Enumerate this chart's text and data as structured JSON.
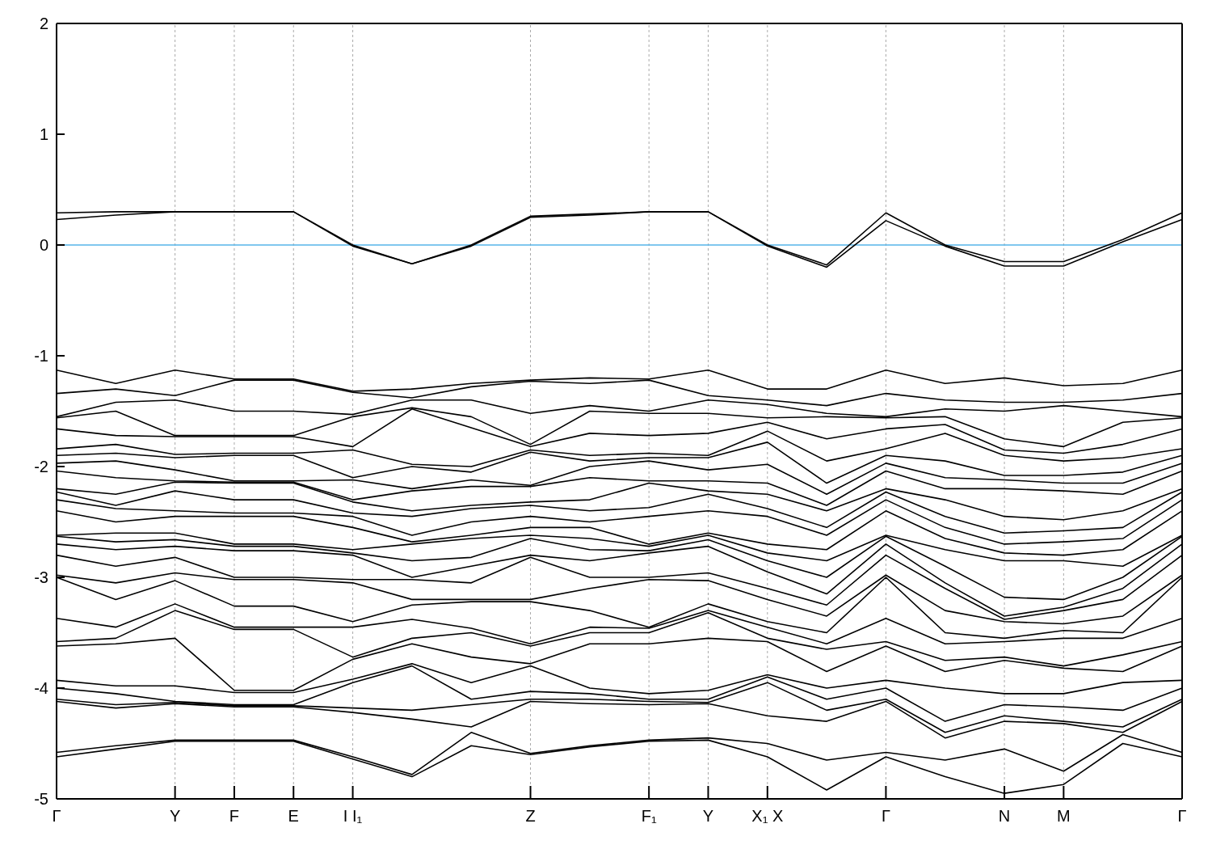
{
  "chart_data": {
    "type": "line",
    "ylim": [
      -5,
      2
    ],
    "categories": [
      "Γ",
      null,
      "Y",
      "F",
      "E",
      "I I₁",
      null,
      null,
      "Z",
      null,
      "F₁",
      "Y",
      "X₁ X",
      null,
      "Γ",
      null,
      "N",
      "M",
      null,
      "Γ"
    ],
    "yticks": [
      -5,
      -4,
      -3,
      -2,
      -1,
      0,
      1,
      2
    ],
    "grid": "x",
    "marker": "none",
    "line_style": "solid",
    "ref_lines": [
      {
        "axis": "y",
        "value": 0,
        "color": "#56b4e9"
      }
    ],
    "series": [
      {
        "color": "#000000",
        "values": [
          0.29,
          0.3,
          0.3,
          0.3,
          0.3,
          0.0,
          -0.17,
          0.0,
          0.26,
          0.28,
          0.3,
          0.3,
          0.0,
          -0.18,
          0.29,
          0.0,
          -0.15,
          -0.15,
          0.05,
          0.29
        ]
      },
      {
        "color": "#000000",
        "values": [
          0.23,
          0.27,
          0.3,
          0.3,
          0.3,
          -0.01,
          -0.17,
          -0.01,
          0.25,
          0.27,
          0.3,
          0.3,
          -0.01,
          -0.2,
          0.22,
          -0.01,
          -0.19,
          -0.19,
          0.03,
          0.23
        ]
      },
      {
        "color": "#000000",
        "values": [
          -1.13,
          -1.25,
          -1.13,
          -1.21,
          -1.21,
          -1.32,
          -1.3,
          -1.25,
          -1.22,
          -1.2,
          -1.21,
          -1.13,
          -1.3,
          -1.3,
          -1.13,
          -1.25,
          -1.2,
          -1.27,
          -1.25,
          -1.13
        ]
      },
      {
        "color": "#000000",
        "values": [
          -1.34,
          -1.3,
          -1.36,
          -1.22,
          -1.22,
          -1.33,
          -1.38,
          -1.28,
          -1.23,
          -1.25,
          -1.22,
          -1.36,
          -1.4,
          -1.45,
          -1.34,
          -1.4,
          -1.42,
          -1.42,
          -1.4,
          -1.34
        ]
      },
      {
        "color": "#000000",
        "values": [
          -1.55,
          -1.42,
          -1.4,
          -1.5,
          -1.5,
          -1.53,
          -1.4,
          -1.4,
          -1.52,
          -1.45,
          -1.5,
          -1.4,
          -1.44,
          -1.52,
          -1.55,
          -1.48,
          -1.5,
          -1.45,
          -1.5,
          -1.55
        ]
      },
      {
        "color": "#000000",
        "values": [
          -1.56,
          -1.5,
          -1.72,
          -1.72,
          -1.72,
          -1.55,
          -1.47,
          -1.55,
          -1.8,
          -1.5,
          -1.52,
          -1.52,
          -1.56,
          -1.55,
          -1.56,
          -1.55,
          -1.75,
          -1.82,
          -1.6,
          -1.56
        ]
      },
      {
        "color": "#000000",
        "values": [
          -1.66,
          -1.72,
          -1.73,
          -1.73,
          -1.73,
          -1.82,
          -1.48,
          -1.65,
          -1.82,
          -1.7,
          -1.72,
          -1.7,
          -1.6,
          -1.75,
          -1.66,
          -1.62,
          -1.85,
          -1.88,
          -1.8,
          -1.66
        ]
      },
      {
        "color": "#000000",
        "values": [
          -1.84,
          -1.8,
          -1.89,
          -1.88,
          -1.88,
          -1.85,
          -1.98,
          -2.0,
          -1.85,
          -1.9,
          -1.88,
          -1.9,
          -1.68,
          -1.95,
          -1.84,
          -1.7,
          -1.9,
          -1.95,
          -1.92,
          -1.84
        ]
      },
      {
        "color": "#000000",
        "values": [
          -1.9,
          -1.88,
          -1.92,
          -1.9,
          -1.9,
          -2.1,
          -2.0,
          -2.05,
          -1.87,
          -1.95,
          -1.92,
          -1.92,
          -1.78,
          -2.15,
          -1.9,
          -1.95,
          -2.08,
          -2.08,
          -2.05,
          -1.9
        ]
      },
      {
        "color": "#000000",
        "values": [
          -1.97,
          -1.95,
          -2.03,
          -2.13,
          -2.13,
          -2.12,
          -2.2,
          -2.12,
          -2.17,
          -2.0,
          -1.95,
          -2.03,
          -1.98,
          -2.25,
          -1.97,
          -2.1,
          -2.12,
          -2.15,
          -2.15,
          -1.97
        ]
      },
      {
        "color": "#000000",
        "values": [
          -2.04,
          -2.1,
          -2.13,
          -2.14,
          -2.14,
          -2.3,
          -2.22,
          -2.18,
          -2.18,
          -2.1,
          -2.13,
          -2.13,
          -2.15,
          -2.35,
          -2.04,
          -2.2,
          -2.2,
          -2.22,
          -2.25,
          -2.04
        ]
      },
      {
        "color": "#000000",
        "values": [
          -2.2,
          -2.25,
          -2.14,
          -2.15,
          -2.15,
          -2.32,
          -2.4,
          -2.35,
          -2.32,
          -2.3,
          -2.15,
          -2.22,
          -2.25,
          -2.4,
          -2.2,
          -2.3,
          -2.45,
          -2.48,
          -2.4,
          -2.2
        ]
      },
      {
        "color": "#000000",
        "values": [
          -2.23,
          -2.35,
          -2.22,
          -2.3,
          -2.3,
          -2.42,
          -2.45,
          -2.38,
          -2.35,
          -2.4,
          -2.37,
          -2.25,
          -2.38,
          -2.55,
          -2.23,
          -2.45,
          -2.6,
          -2.58,
          -2.55,
          -2.23
        ]
      },
      {
        "color": "#000000",
        "values": [
          -2.3,
          -2.38,
          -2.4,
          -2.42,
          -2.42,
          -2.45,
          -2.62,
          -2.5,
          -2.45,
          -2.5,
          -2.45,
          -2.4,
          -2.45,
          -2.62,
          -2.3,
          -2.55,
          -2.7,
          -2.68,
          -2.65,
          -2.3
        ]
      },
      {
        "color": "#000000",
        "values": [
          -2.4,
          -2.5,
          -2.45,
          -2.45,
          -2.45,
          -2.55,
          -2.68,
          -2.62,
          -2.55,
          -2.55,
          -2.7,
          -2.6,
          -2.7,
          -2.75,
          -2.4,
          -2.65,
          -2.78,
          -2.8,
          -2.75,
          -2.4
        ]
      },
      {
        "color": "#000000",
        "values": [
          -2.62,
          -2.6,
          -2.6,
          -2.7,
          -2.7,
          -2.75,
          -2.7,
          -2.65,
          -2.62,
          -2.65,
          -2.72,
          -2.62,
          -2.78,
          -2.85,
          -2.62,
          -2.75,
          -2.85,
          -2.85,
          -2.9,
          -2.62
        ]
      },
      {
        "color": "#000000",
        "values": [
          -2.63,
          -2.68,
          -2.66,
          -2.72,
          -2.72,
          -2.78,
          -2.85,
          -2.82,
          -2.65,
          -2.75,
          -2.76,
          -2.66,
          -2.85,
          -3.0,
          -2.63,
          -2.9,
          -3.18,
          -3.2,
          -3.0,
          -2.63
        ]
      },
      {
        "color": "#000000",
        "values": [
          -2.7,
          -2.75,
          -2.72,
          -2.76,
          -2.76,
          -2.8,
          -3.0,
          -2.9,
          -2.8,
          -2.85,
          -2.78,
          -2.72,
          -2.95,
          -3.15,
          -2.7,
          -3.05,
          -3.35,
          -3.27,
          -3.1,
          -2.7
        ]
      },
      {
        "color": "#000000",
        "values": [
          -2.8,
          -2.9,
          -2.82,
          -3.0,
          -3.0,
          -3.02,
          -3.02,
          -3.05,
          -2.82,
          -3.0,
          -3.0,
          -2.96,
          -3.1,
          -3.25,
          -2.8,
          -3.1,
          -3.38,
          -3.3,
          -3.2,
          -2.8
        ]
      },
      {
        "color": "#000000",
        "values": [
          -2.98,
          -3.05,
          -2.96,
          -3.02,
          -3.02,
          -3.05,
          -3.2,
          -3.2,
          -3.2,
          -3.1,
          -3.02,
          -3.03,
          -3.2,
          -3.35,
          -2.98,
          -3.3,
          -3.4,
          -3.42,
          -3.35,
          -2.98
        ]
      },
      {
        "color": "#000000",
        "values": [
          -3.0,
          -3.2,
          -3.03,
          -3.26,
          -3.26,
          -3.4,
          -3.25,
          -3.22,
          -3.22,
          -3.3,
          -3.45,
          -3.24,
          -3.4,
          -3.5,
          -3.0,
          -3.5,
          -3.55,
          -3.48,
          -3.5,
          -3.0
        ]
      },
      {
        "color": "#000000",
        "values": [
          -3.37,
          -3.45,
          -3.24,
          -3.45,
          -3.45,
          -3.45,
          -3.38,
          -3.46,
          -3.6,
          -3.45,
          -3.46,
          -3.3,
          -3.45,
          -3.6,
          -3.37,
          -3.6,
          -3.58,
          -3.55,
          -3.55,
          -3.37
        ]
      },
      {
        "color": "#000000",
        "values": [
          -3.58,
          -3.55,
          -3.3,
          -3.47,
          -3.47,
          -3.72,
          -3.55,
          -3.5,
          -3.62,
          -3.5,
          -3.5,
          -3.32,
          -3.55,
          -3.65,
          -3.58,
          -3.75,
          -3.72,
          -3.8,
          -3.7,
          -3.58
        ]
      },
      {
        "color": "#000000",
        "values": [
          -3.62,
          -3.6,
          -3.55,
          -4.02,
          -4.02,
          -3.74,
          -3.6,
          -3.72,
          -3.78,
          -3.6,
          -3.6,
          -3.55,
          -3.58,
          -3.85,
          -3.62,
          -3.85,
          -3.75,
          -3.82,
          -3.85,
          -3.62
        ]
      },
      {
        "color": "#000000",
        "values": [
          -3.93,
          -3.98,
          -3.98,
          -4.04,
          -4.04,
          -3.92,
          -3.78,
          -3.95,
          -3.8,
          -4.0,
          -4.05,
          -4.02,
          -3.88,
          -4.0,
          -3.93,
          -4.0,
          -4.05,
          -4.05,
          -3.95,
          -3.93
        ]
      },
      {
        "color": "#000000",
        "values": [
          -4.0,
          -4.05,
          -4.12,
          -4.15,
          -4.15,
          -3.95,
          -3.8,
          -4.1,
          -4.03,
          -4.05,
          -4.1,
          -4.1,
          -3.9,
          -4.1,
          -4.0,
          -4.3,
          -4.15,
          -4.17,
          -4.2,
          -4.0
        ]
      },
      {
        "color": "#000000",
        "values": [
          -4.1,
          -4.15,
          -4.13,
          -4.16,
          -4.16,
          -4.18,
          -4.2,
          -4.15,
          -4.1,
          -4.1,
          -4.12,
          -4.13,
          -3.95,
          -4.2,
          -4.1,
          -4.4,
          -4.25,
          -4.3,
          -4.35,
          -4.1
        ]
      },
      {
        "color": "#000000",
        "values": [
          -4.12,
          -4.18,
          -4.14,
          -4.17,
          -4.17,
          -4.22,
          -4.28,
          -4.35,
          -4.12,
          -4.14,
          -4.15,
          -4.14,
          -4.25,
          -4.3,
          -4.12,
          -4.45,
          -4.3,
          -4.32,
          -4.4,
          -4.12
        ]
      },
      {
        "color": "#000000",
        "values": [
          -4.58,
          -4.52,
          -4.47,
          -4.47,
          -4.47,
          -4.62,
          -4.78,
          -4.4,
          -4.59,
          -4.52,
          -4.47,
          -4.45,
          -4.5,
          -4.65,
          -4.58,
          -4.65,
          -4.55,
          -4.75,
          -4.42,
          -4.58
        ]
      },
      {
        "color": "#000000",
        "values": [
          -4.62,
          -4.55,
          -4.48,
          -4.48,
          -4.48,
          -4.64,
          -4.8,
          -4.52,
          -4.6,
          -4.53,
          -4.48,
          -4.47,
          -4.62,
          -4.92,
          -4.62,
          -4.8,
          -4.95,
          -4.87,
          -4.5,
          -4.62
        ]
      }
    ]
  }
}
